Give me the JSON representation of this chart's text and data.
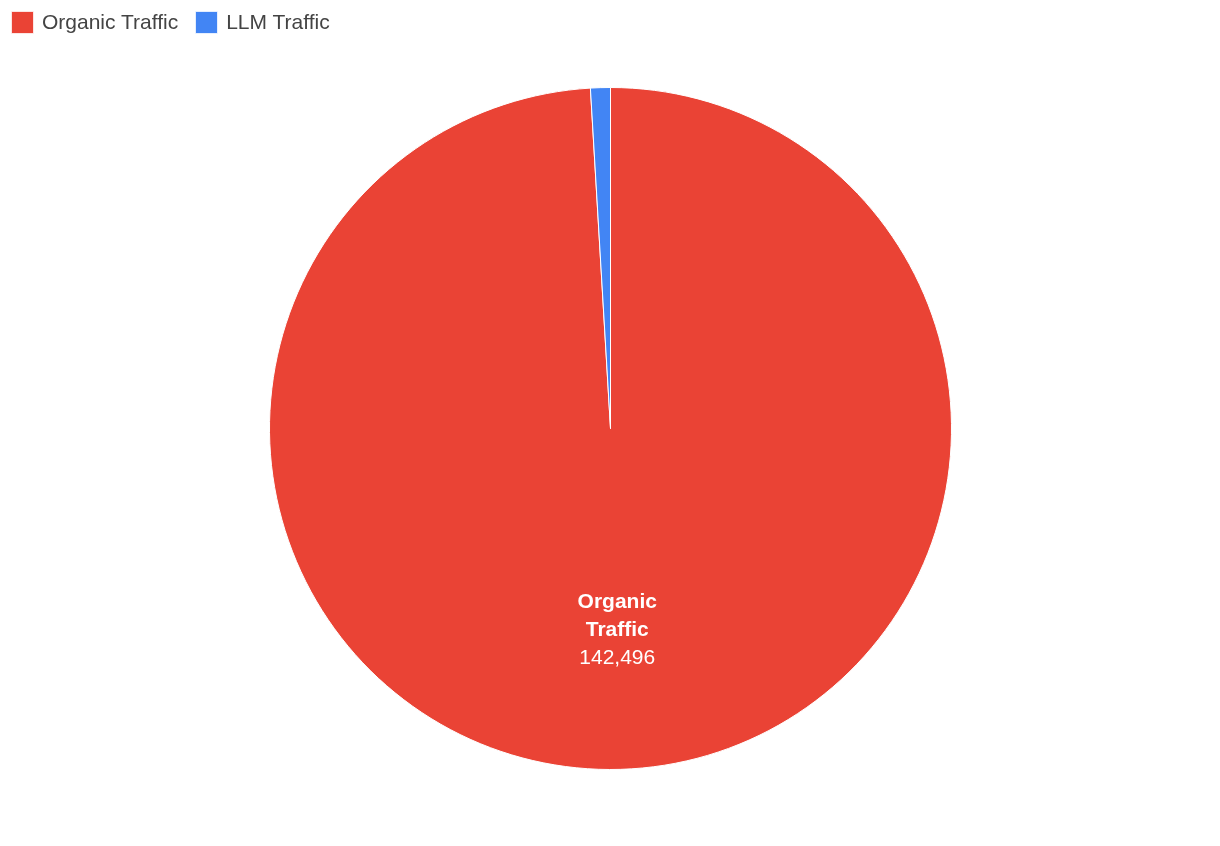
{
  "chart_data": {
    "type": "pie",
    "categories": [
      "Organic Traffic",
      "LLM Traffic"
    ],
    "values": [
      142496,
      1350
    ],
    "colors": [
      "#ea4335",
      "#4285f4"
    ],
    "value_labels": [
      "142,496",
      null
    ],
    "legend": "top left"
  }
}
